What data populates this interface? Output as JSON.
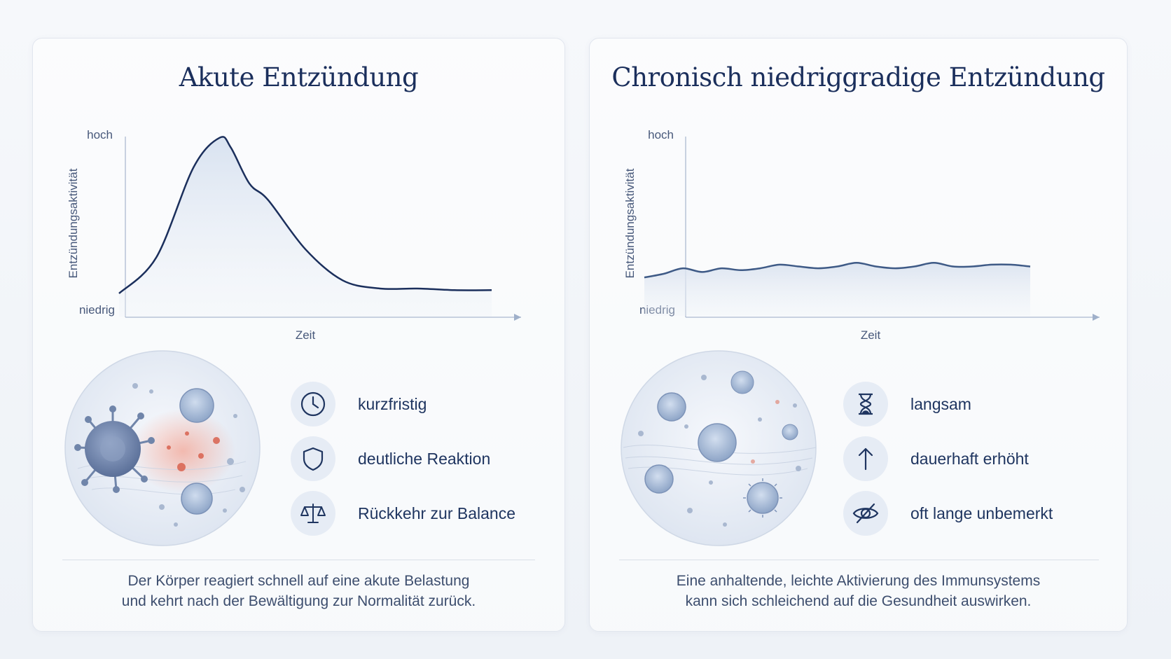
{
  "panels": [
    {
      "title": "Akute Entzündung",
      "y_axis_label": "Entzündungsaktivität",
      "y_high": "hoch",
      "y_low": "niedrig",
      "x_axis_label": "Zeit",
      "features": [
        {
          "icon": "clock-icon",
          "label": "kurzfristig"
        },
        {
          "icon": "shield-icon",
          "label": "deutliche Reaktion"
        },
        {
          "icon": "balance-scale-icon",
          "label": "Rückkehr zur Balance"
        }
      ],
      "caption_line1": "Der Körper reagiert schnell auf eine akute Belastung",
      "caption_line2": "und kehrt nach der Bewältigung zur Normalität zurück."
    },
    {
      "title": "Chronisch niedriggradige Entzündung",
      "y_axis_label": "Entzündungsaktivität",
      "y_high": "hoch",
      "y_low": "niedrig",
      "x_axis_label": "Zeit",
      "features": [
        {
          "icon": "hourglass-icon",
          "label": "langsam"
        },
        {
          "icon": "arrow-up-icon",
          "label": "dauerhaft erhöht"
        },
        {
          "icon": "eye-slash-icon",
          "label": "oft lange unbemerkt"
        }
      ],
      "caption_line1": "Eine anhaltende, leichte Aktivierung des Immunsystems",
      "caption_line2": "kann sich schleichend auf die Gesundheit auswirken."
    }
  ],
  "chart_data": [
    {
      "type": "area",
      "title": "Akute Entzündung",
      "xlabel": "Zeit",
      "ylabel": "Entzündungsaktivität",
      "yticks": [
        "niedrig",
        "hoch"
      ],
      "x": [
        0,
        0.1,
        0.2,
        0.27,
        0.3,
        0.35,
        0.4,
        0.5,
        0.6,
        0.7,
        0.8,
        0.9,
        1.0
      ],
      "y": [
        0.03,
        0.25,
        0.8,
        0.98,
        0.92,
        0.7,
        0.6,
        0.3,
        0.11,
        0.06,
        0.06,
        0.05,
        0.05
      ],
      "colors": {
        "line": "#1b2f5c",
        "fill": "#dbe4f1"
      }
    },
    {
      "type": "area",
      "title": "Chronisch niedriggradige Entzündung",
      "xlabel": "Zeit",
      "ylabel": "Entzündungsaktivität",
      "yticks": [
        "niedrig",
        "hoch"
      ],
      "x": [
        0,
        0.05,
        0.1,
        0.15,
        0.2,
        0.25,
        0.3,
        0.35,
        0.4,
        0.45,
        0.5,
        0.55,
        0.6,
        0.65,
        0.7,
        0.75,
        0.8,
        0.85,
        0.9,
        0.95,
        1.0
      ],
      "y": [
        0.21,
        0.23,
        0.26,
        0.24,
        0.26,
        0.25,
        0.26,
        0.28,
        0.27,
        0.26,
        0.27,
        0.29,
        0.27,
        0.26,
        0.27,
        0.29,
        0.27,
        0.27,
        0.28,
        0.28,
        0.27
      ],
      "colors": {
        "line": "#3e5a86",
        "fill": "#e3e9f2"
      }
    }
  ]
}
